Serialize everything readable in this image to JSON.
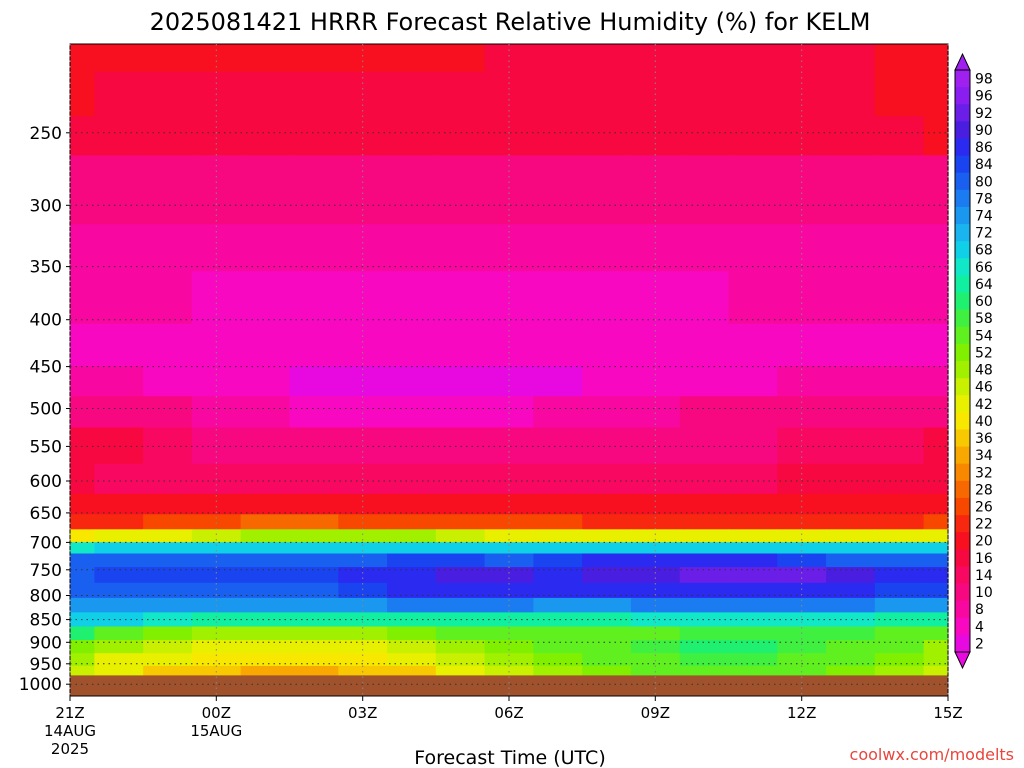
{
  "chart_data": {
    "type": "heatmap",
    "title": "2025081421 HRRR Forecast Relative Humidity (%) for KELM",
    "xlabel": "Forecast Time (UTC)",
    "ylabel": "",
    "credit": "coolwx.com/modelts",
    "x_ticks": [
      {
        "label": "21Z",
        "sub1": "14AUG",
        "sub2": "2025",
        "hour": 0
      },
      {
        "label": "00Z",
        "sub1": "15AUG",
        "sub2": "",
        "hour": 3
      },
      {
        "label": "03Z",
        "sub1": "",
        "sub2": "",
        "hour": 6
      },
      {
        "label": "06Z",
        "sub1": "",
        "sub2": "",
        "hour": 9
      },
      {
        "label": "09Z",
        "sub1": "",
        "sub2": "",
        "hour": 12
      },
      {
        "label": "12Z",
        "sub1": "",
        "sub2": "",
        "hour": 15
      },
      {
        "label": "15Z",
        "sub1": "",
        "sub2": "",
        "hour": 18
      }
    ],
    "x_range_hours": [
      0,
      18
    ],
    "y_ticks": [
      "250",
      "300",
      "350",
      "400",
      "450",
      "500",
      "550",
      "600",
      "650",
      "700",
      "750",
      "800",
      "850",
      "900",
      "950",
      "1000"
    ],
    "y_range_hpa": [
      200,
      1030
    ],
    "y_scale": "log",
    "grid": true,
    "colorbar_labels": [
      "98",
      "96",
      "92",
      "90",
      "86",
      "84",
      "80",
      "78",
      "74",
      "72",
      "68",
      "66",
      "64",
      "60",
      "58",
      "54",
      "52",
      "48",
      "46",
      "42",
      "40",
      "36",
      "34",
      "32",
      "28",
      "26",
      "22",
      "20",
      "16",
      "14",
      "10",
      "8",
      "4",
      "2"
    ],
    "colorbar_colors": [
      "#a020f0",
      "#8a1ef0",
      "#6a1ee8",
      "#4a1ee0",
      "#2a2af0",
      "#1a44f0",
      "#1a60f0",
      "#1a7cf0",
      "#1a98f0",
      "#1ab4f0",
      "#10d0e8",
      "#10e8c8",
      "#10f0a0",
      "#20f070",
      "#40f040",
      "#60f020",
      "#80f000",
      "#a0f000",
      "#c8f000",
      "#e8f000",
      "#f8e800",
      "#f8c800",
      "#f8a800",
      "#f88800",
      "#f86800",
      "#f84800",
      "#f82810",
      "#f81020",
      "#f80840",
      "#f80860",
      "#f80880",
      "#f808a0",
      "#f808c0",
      "#e808e0"
    ],
    "rows": [
      {
        "p": 200,
        "rh": [
          20,
          20,
          20,
          20,
          20,
          20,
          20,
          20,
          20,
          19,
          18,
          16,
          16,
          16,
          18,
          18,
          19,
          20,
          20
        ]
      },
      {
        "p": 230,
        "rh": [
          20,
          19,
          18,
          18,
          19,
          19,
          19,
          19,
          19,
          19,
          19,
          18,
          17,
          16,
          17,
          18,
          19,
          20,
          20
        ]
      },
      {
        "p": 250,
        "rh": [
          18,
          18,
          16,
          16,
          16,
          17,
          17,
          17,
          17,
          18,
          18,
          18,
          18,
          18,
          18,
          18,
          18,
          19,
          20
        ]
      },
      {
        "p": 280,
        "rh": [
          12,
          12,
          12,
          12,
          12,
          12,
          12,
          12,
          12,
          12,
          12,
          12,
          12,
          12,
          12,
          12,
          12,
          12,
          12
        ]
      },
      {
        "p": 300,
        "rh": [
          10,
          10,
          10,
          10,
          10,
          10,
          10,
          10,
          10,
          10,
          10,
          10,
          10,
          10,
          10,
          10,
          10,
          10,
          10
        ]
      },
      {
        "p": 330,
        "rh": [
          8,
          8,
          8,
          8,
          9,
          9,
          9,
          9,
          9,
          9,
          9,
          9,
          9,
          9,
          9,
          9,
          9,
          9,
          9
        ]
      },
      {
        "p": 380,
        "rh": [
          8,
          8,
          8,
          7,
          7,
          7,
          7,
          7,
          7,
          7,
          7,
          7,
          7,
          7,
          8,
          8,
          8,
          8,
          8
        ]
      },
      {
        "p": 430,
        "rh": [
          7,
          7,
          6,
          5,
          4,
          4,
          4,
          4,
          4,
          4,
          4,
          5,
          6,
          6,
          7,
          7,
          7,
          7,
          7
        ]
      },
      {
        "p": 470,
        "rh": [
          9,
          8,
          7,
          5,
          4,
          3,
          3,
          3,
          3,
          3,
          3,
          4,
          5,
          6,
          7,
          8,
          8,
          8,
          8
        ]
      },
      {
        "p": 500,
        "rh": [
          13,
          12,
          10,
          9,
          8,
          7,
          7,
          7,
          7,
          7,
          8,
          8,
          9,
          10,
          11,
          11,
          11,
          12,
          12
        ]
      },
      {
        "p": 550,
        "rh": [
          18,
          16,
          14,
          12,
          11,
          11,
          12,
          12,
          13,
          13,
          12,
          12,
          12,
          12,
          13,
          14,
          14,
          15,
          16
        ]
      },
      {
        "p": 600,
        "rh": [
          16,
          15,
          14,
          14,
          14,
          14,
          14,
          14,
          14,
          14,
          14,
          14,
          14,
          14,
          15,
          16,
          16,
          17,
          18
        ]
      },
      {
        "p": 640,
        "rh": [
          20,
          20,
          20,
          20,
          20,
          20,
          20,
          20,
          20,
          20,
          20,
          20,
          20,
          20,
          20,
          20,
          20,
          20,
          20
        ]
      },
      {
        "p": 665,
        "rh": [
          24,
          25,
          26,
          27,
          28,
          28,
          27,
          27,
          27,
          26,
          26,
          25,
          25,
          25,
          25,
          25,
          25,
          25,
          26
        ]
      },
      {
        "p": 690,
        "rh": [
          40,
          42,
          44,
          46,
          48,
          50,
          50,
          48,
          46,
          45,
          44,
          43,
          43,
          43,
          43,
          43,
          44,
          45,
          45
        ]
      },
      {
        "p": 710,
        "rh": [
          66,
          68,
          70,
          70,
          70,
          70,
          70,
          70,
          70,
          70,
          70,
          70,
          70,
          70,
          70,
          70,
          70,
          70,
          70
        ]
      },
      {
        "p": 730,
        "rh": [
          80,
          80,
          80,
          80,
          80,
          80,
          82,
          84,
          84,
          82,
          84,
          86,
          86,
          86,
          86,
          84,
          82,
          82,
          82
        ]
      },
      {
        "p": 760,
        "rh": [
          82,
          84,
          84,
          84,
          84,
          84,
          86,
          88,
          90,
          90,
          88,
          90,
          90,
          92,
          94,
          92,
          90,
          88,
          86
        ]
      },
      {
        "p": 790,
        "rh": [
          82,
          82,
          82,
          82,
          82,
          82,
          84,
          86,
          86,
          86,
          86,
          86,
          88,
          88,
          88,
          88,
          86,
          84,
          84
        ]
      },
      {
        "p": 820,
        "rh": [
          74,
          76,
          76,
          76,
          76,
          76,
          76,
          78,
          78,
          78,
          76,
          76,
          78,
          78,
          78,
          78,
          78,
          76,
          74
        ]
      },
      {
        "p": 850,
        "rh": [
          68,
          68,
          66,
          64,
          64,
          64,
          64,
          64,
          64,
          64,
          64,
          64,
          66,
          66,
          66,
          66,
          66,
          64,
          64
        ]
      },
      {
        "p": 880,
        "rh": [
          60,
          54,
          52,
          50,
          50,
          50,
          50,
          52,
          54,
          56,
          56,
          56,
          56,
          58,
          58,
          58,
          58,
          56,
          54
        ]
      },
      {
        "p": 910,
        "rh": [
          52,
          48,
          46,
          44,
          44,
          44,
          44,
          46,
          50,
          52,
          54,
          56,
          58,
          60,
          60,
          58,
          56,
          54,
          50
        ]
      },
      {
        "p": 940,
        "rh": [
          48,
          44,
          42,
          40,
          40,
          40,
          40,
          42,
          46,
          50,
          52,
          54,
          56,
          58,
          58,
          56,
          54,
          52,
          48
        ]
      },
      {
        "p": 970,
        "rh": [
          46,
          42,
          38,
          36,
          34,
          34,
          36,
          38,
          42,
          46,
          50,
          52,
          54,
          56,
          56,
          54,
          52,
          50,
          46
        ]
      }
    ],
    "ground_pressure_hpa": 978
  }
}
